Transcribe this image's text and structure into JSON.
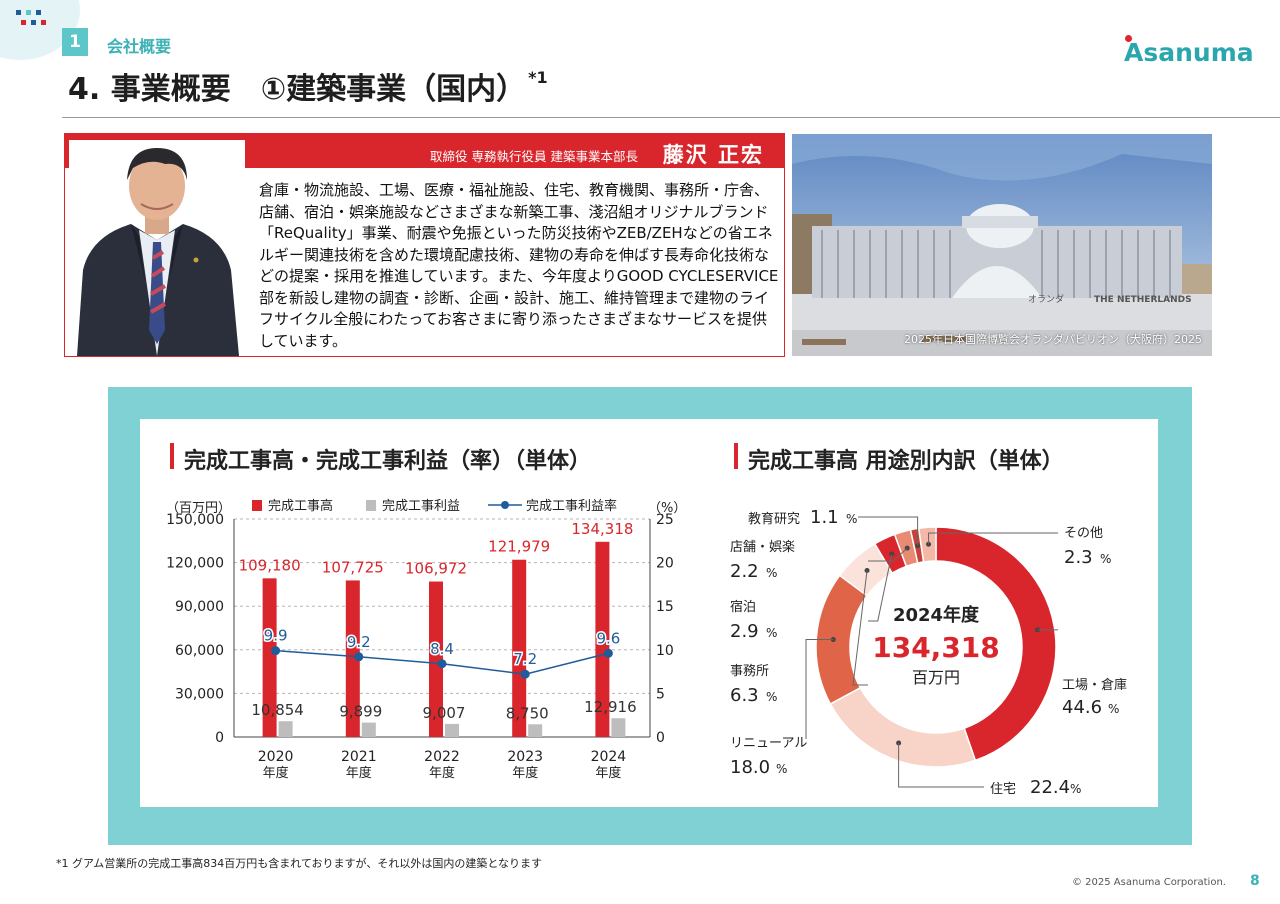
{
  "header": {
    "section_number": "1",
    "section_label": "会社概要",
    "title": "4. 事業概要　①建築事業（国内）",
    "title_mark": "*1",
    "logo_text": "Asanuma"
  },
  "executive": {
    "role": "取締役 専務執行役員 建築事業本部長",
    "name": "藤沢 正宏",
    "description": "倉庫・物流施設、工場、医療・福祉施設、住宅、教育機関、事務所・庁舎、店舗、宿泊・娯楽施設などさまざまな新築工事、淺沼組オリジナルブランド「ReQuality」事業、耐震や免振といった防災技術やZEB/ZEHなどの省エネルギー関連技術を含めた環境配慮技術、建物の寿命を伸ばす長寿命化技術などの提案・採用を推進しています。また、今年度よりGOOD CYCLESERVICE部を新設し建物の調査・診断、企画・設計、施工、維持管理まで建物のライフサイクル全般にわたってお客さまに寄り添ったさまざまなサービスを提供しています。"
  },
  "photo": {
    "caption": "2025年日本国際博覧会オランダパビリオン（大阪府）2025",
    "sign_jp": "オランダ",
    "sign_en": "THE NETHERLANDS"
  },
  "colors": {
    "accent_red": "#d9262c",
    "teal": "#5cc6c8",
    "panel_bg": "#7fd1d3",
    "profit_gray": "#bdbdbd",
    "rate_blue": "#1f5c99"
  },
  "chart_data": [
    {
      "type": "bar",
      "title": "完成工事高・完成工事利益（率）（単体）",
      "ylabel_left": "（百万円）",
      "ylabel_right": "（%）",
      "categories": [
        {
          "year": "2020",
          "suffix": "年度"
        },
        {
          "year": "2021",
          "suffix": "年度"
        },
        {
          "year": "2022",
          "suffix": "年度"
        },
        {
          "year": "2023",
          "suffix": "年度"
        },
        {
          "year": "2024",
          "suffix": "年度"
        }
      ],
      "ylim_left": [
        0,
        150000
      ],
      "yticks_left": [
        "150,000",
        "120,000",
        "90,000",
        "60,000",
        "30,000",
        "0"
      ],
      "ylim_right": [
        0,
        25
      ],
      "yticks_right": [
        "25",
        "20",
        "15",
        "10",
        "5",
        "0"
      ],
      "grid": true,
      "series": [
        {
          "name": "完成工事高",
          "kind": "bar",
          "color": "#d9262c",
          "values": [
            109180,
            107725,
            106972,
            121979,
            134318
          ],
          "labels": [
            "109,180",
            "107,725",
            "106,972",
            "121,979",
            "134,318"
          ]
        },
        {
          "name": "完成工事利益",
          "kind": "bar",
          "color": "#bdbdbd",
          "values": [
            10854,
            9899,
            9007,
            8750,
            12916
          ],
          "labels": [
            "10,854",
            "9,899",
            "9,007",
            "8,750",
            "12,916"
          ]
        },
        {
          "name": "完成工事利益率",
          "kind": "line",
          "axis": "right",
          "color": "#1f5c99",
          "values": [
            9.9,
            9.2,
            8.4,
            7.2,
            9.6
          ],
          "labels": [
            "9.9",
            "9.2",
            "8.4",
            "7.2",
            "9.6"
          ]
        }
      ]
    },
    {
      "type": "pie",
      "title": "完成工事高 用途別内訳（単体）",
      "center_year": "2024年度",
      "center_value": "134,318",
      "center_unit": "百万円",
      "unit_suffix": "%",
      "slices": [
        {
          "name": "工場・倉庫",
          "value": 44.6,
          "label": "44.6",
          "color": "#d9262c"
        },
        {
          "name": "住宅",
          "value": 22.4,
          "label": "22.4",
          "color": "#f7d3c8"
        },
        {
          "name": "リニューアル",
          "value": 18.0,
          "label": "18.0",
          "color": "#e06548"
        },
        {
          "name": "事務所",
          "value": 6.3,
          "label": "6.3",
          "color": "#fbe2da"
        },
        {
          "name": "宿泊",
          "value": 2.9,
          "label": "2.9",
          "color": "#d9262c"
        },
        {
          "name": "店舗・娯楽",
          "value": 2.2,
          "label": "2.2",
          "color": "#e98a73"
        },
        {
          "name": "教育研究",
          "value": 1.1,
          "label": "1.1",
          "color": "#c7403a"
        },
        {
          "name": "その他",
          "value": 2.3,
          "label": "2.3",
          "color": "#f4b9a6"
        }
      ]
    }
  ],
  "footer": {
    "footnote": "*1 グアム営業所の完成工事高834百万円も含まれておりますが、それ以外は国内の建築となります",
    "copyright": "© 2025 Asanuma Corporation.",
    "page_number": "8"
  }
}
